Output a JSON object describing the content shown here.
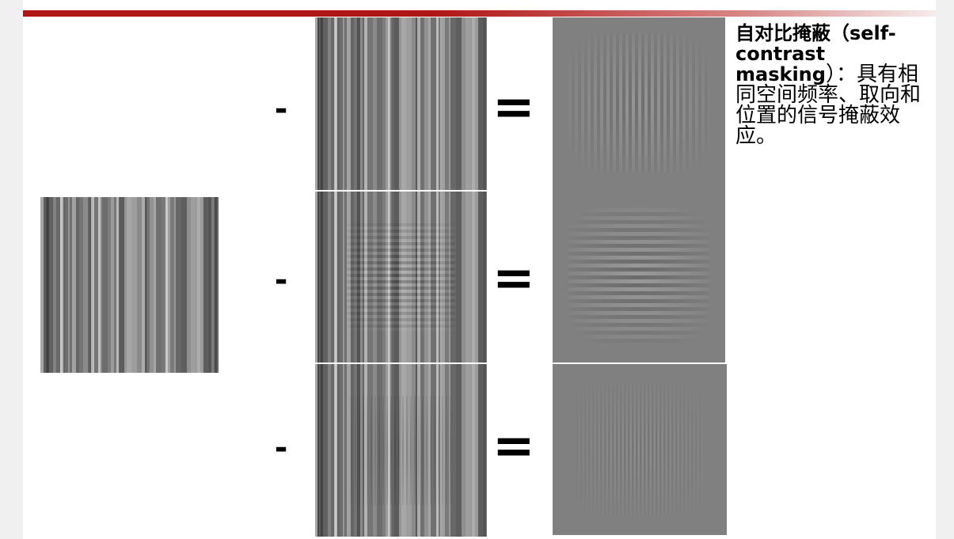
{
  "slide": {
    "operators": {
      "minus": "-",
      "equals": "="
    },
    "caption": {
      "term": "自对比掩蔽（self-contrast masking",
      "definition": "）：具有相同空间频率、取向和位置的信号掩蔽效应。"
    },
    "images": {
      "masker": "masker-texture",
      "row1_composite": "vertical-grating-plus-masker",
      "row1_result": "vertical-gabor-grating",
      "row2_composite": "horizontal-grating-plus-masker",
      "row2_result": "horizontal-gabor-grating",
      "row3_composite": "oblique-grating-plus-masker",
      "row3_result": "fine-vertical-gabor-grating"
    },
    "colors": {
      "accent_bar": "#b01515",
      "tile_gray": "#808080"
    }
  }
}
